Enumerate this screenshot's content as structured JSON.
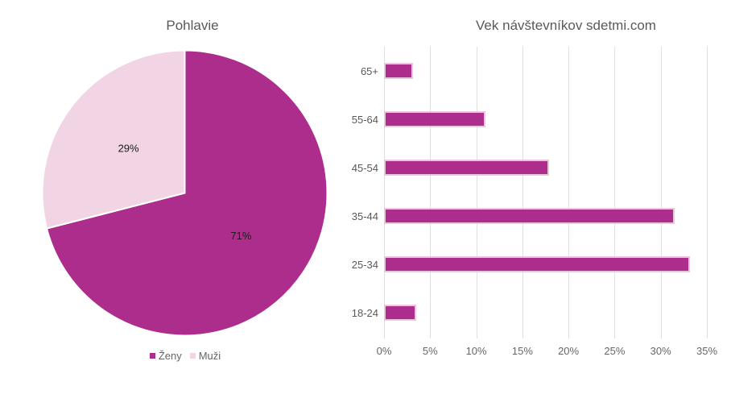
{
  "page": {
    "background": "#ffffff"
  },
  "colors": {
    "primary": "#ac2d8b",
    "secondary": "#f2d5e5",
    "bar_border": "#eac6dc",
    "title_text": "#595959",
    "axis_text": "#666666",
    "legend_text": "#666666",
    "gridline": "#e0e0e0",
    "data_label": "#1a1a1a"
  },
  "chart_data": [
    {
      "type": "pie",
      "title": "Pohlavie",
      "labels": [
        "Ženy",
        "Muži"
      ],
      "label_ids": [
        "zeny",
        "muzi"
      ],
      "values": [
        71,
        29
      ],
      "display_labels": [
        "71%",
        "29%"
      ],
      "colors": [
        "#ac2d8b",
        "#f2d5e5"
      ],
      "start_angle_deg": 0,
      "direction": "clockwise",
      "legend_position": "bottom"
    },
    {
      "type": "bar",
      "orientation": "horizontal",
      "title": "Vek návštevníkov sdetmi.com",
      "categories": [
        "65+",
        "55-64",
        "45-54",
        "35-44",
        "25-34",
        "18-24"
      ],
      "values": [
        3.1,
        11,
        17.9,
        31.5,
        33.2,
        3.5
      ],
      "unit": "%",
      "xlim": [
        0,
        35
      ],
      "x_ticks": [
        "0%",
        "5%",
        "10%",
        "15%",
        "20%",
        "25%",
        "30%",
        "35%"
      ],
      "grid": true,
      "bar_color": "#ac2d8b"
    }
  ]
}
